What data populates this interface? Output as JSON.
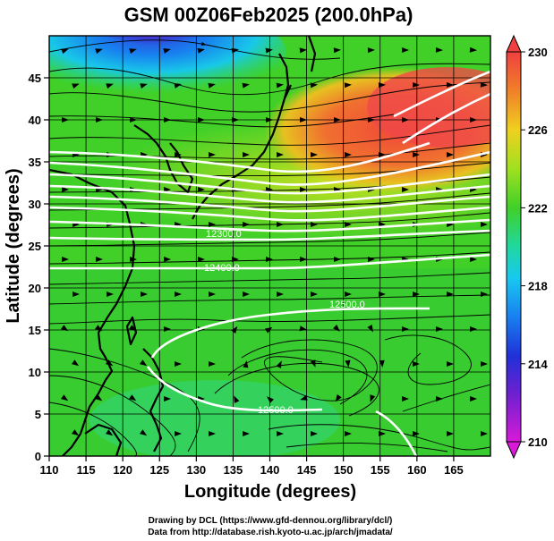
{
  "title": "GSM 00Z06Feb2025 (200.0hPa)",
  "xlabel": "Longitude (degrees)",
  "ylabel": "Latitude  (degrees)",
  "x_ticks": [
    "110",
    "115",
    "120",
    "125",
    "130",
    "135",
    "140",
    "145",
    "150",
    "155",
    "160",
    "165"
  ],
  "y_ticks": [
    "0",
    "5",
    "10",
    "15",
    "20",
    "25",
    "30",
    "35",
    "40",
    "45"
  ],
  "colorbar_ticks": [
    "210",
    "214",
    "218",
    "222",
    "226",
    "230"
  ],
  "credit_line1": "Drawing by DCL (https://www.gfd-dennou.org/library/dcl/)",
  "credit_line2": "Data from http://database.rish.kyoto-u.ac.jp/arch/jmadata/",
  "contour_labels": [
    "12300.0",
    "12500.0",
    "12400.0",
    "12500.0"
  ],
  "chart_data": {
    "type": "heatmap",
    "title": "GSM 00Z06Feb2025 (200.0hPa)",
    "xlabel": "Longitude (degrees)",
    "ylabel": "Latitude  (degrees)",
    "xlim": [
      110,
      170
    ],
    "ylim": [
      0,
      50
    ],
    "color_range": [
      210,
      230
    ],
    "colorbar_ticks": [
      210,
      214,
      218,
      222,
      226,
      230
    ],
    "colors": {
      "min": "#d81ad8",
      "low": "#2030d8",
      "cool": "#18c8f0",
      "mid": "#20d880",
      "green": "#40d028",
      "warm": "#f0d020",
      "high": "#f04040"
    }
  }
}
